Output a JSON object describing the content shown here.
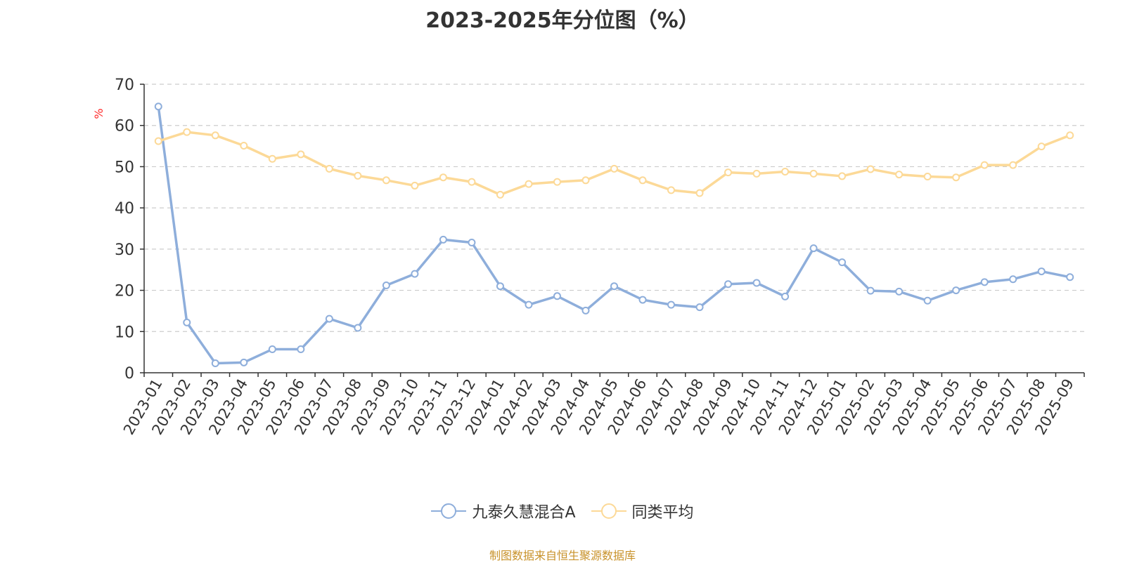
{
  "source_note": "制图数据来自恒生聚源数据库",
  "chart_data": {
    "type": "line",
    "title": "2023-2025年分位图（%）",
    "ylabel": "%",
    "xlabel": "",
    "ylim": [
      0,
      70
    ],
    "yticks": [
      0,
      10,
      20,
      30,
      40,
      50,
      60,
      70
    ],
    "grid": true,
    "legend_position": "bottom",
    "categories": [
      "2023-01",
      "2023-02",
      "2023-03",
      "2023-04",
      "2023-05",
      "2023-06",
      "2023-07",
      "2023-08",
      "2023-09",
      "2023-10",
      "2023-11",
      "2023-12",
      "2024-01",
      "2024-02",
      "2024-03",
      "2024-04",
      "2024-05",
      "2024-06",
      "2024-07",
      "2024-08",
      "2024-09",
      "2024-10",
      "2024-11",
      "2024-12",
      "2025-01",
      "2025-02",
      "2025-03",
      "2025-04",
      "2025-05",
      "2025-06",
      "2025-07",
      "2025-08",
      "2025-09"
    ],
    "series": [
      {
        "name": "九泰久慧混合A",
        "color": "#8eaedb",
        "values": [
          64.6,
          12.2,
          2.3,
          2.5,
          5.7,
          5.7,
          13.1,
          10.9,
          21.2,
          24.0,
          32.3,
          31.6,
          21.0,
          16.5,
          18.6,
          15.1,
          21.0,
          17.7,
          16.5,
          15.9,
          21.5,
          21.8,
          18.5,
          30.2,
          26.8,
          19.9,
          19.7,
          17.5,
          20.0,
          22.0,
          22.7,
          24.6,
          23.2
        ]
      },
      {
        "name": "同类平均",
        "color": "#fcd997",
        "values": [
          56.2,
          58.4,
          57.6,
          55.1,
          51.9,
          53.0,
          49.5,
          47.8,
          46.7,
          45.4,
          47.4,
          46.3,
          43.2,
          45.8,
          46.3,
          46.7,
          49.5,
          46.7,
          44.3,
          43.6,
          48.6,
          48.3,
          48.8,
          48.3,
          47.7,
          49.4,
          48.1,
          47.6,
          47.4,
          50.4,
          50.4,
          54.9,
          57.6
        ]
      }
    ]
  }
}
